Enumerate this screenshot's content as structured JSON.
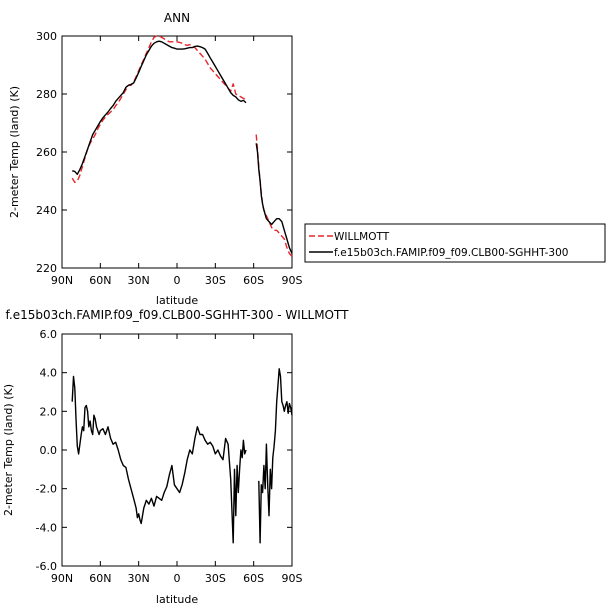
{
  "chart_data": [
    {
      "type": "line",
      "title": "ANN",
      "xlabel": "latitude",
      "ylabel": "2-meter Temp (land) (K)",
      "xlim": [
        90,
        -90
      ],
      "ylim": [
        220,
        300
      ],
      "xticks": [
        90,
        60,
        30,
        0,
        -30,
        -60,
        -90
      ],
      "xtick_labels": [
        "90N",
        "60N",
        "30N",
        "0",
        "30S",
        "60S",
        "90S"
      ],
      "yticks": [
        220,
        240,
        260,
        280,
        300
      ],
      "ytick_labels": [
        "220",
        "240",
        "260",
        "280",
        "300"
      ],
      "legend": {
        "placement": "right"
      },
      "series": [
        {
          "name": "WILLMOTT",
          "color": "#e8262b",
          "dash": "dashed",
          "segments": [
            {
              "x": [
                82,
                80,
                78,
                76,
                74,
                72,
                70,
                68,
                66,
                64,
                62,
                60,
                58,
                56,
                54,
                52,
                50,
                48,
                46,
                44,
                42,
                40,
                38,
                36,
                34,
                32,
                30,
                28,
                26,
                24,
                22,
                20,
                18,
                16,
                14,
                12,
                10,
                8,
                6,
                4,
                2,
                0,
                -2,
                -4,
                -6,
                -8,
                -10,
                -12,
                -14,
                -16,
                -18,
                -20,
                -22,
                -24,
                -26,
                -28,
                -30,
                -32,
                -34,
                -36,
                -38,
                -40,
                -42,
                -44,
                -46,
                -48,
                -50,
                -52,
                -54
              ],
              "y": [
                251,
                249.5,
                250,
                252,
                255,
                258,
                261,
                263,
                264.5,
                266,
                268,
                269.5,
                271,
                272,
                273,
                273.8,
                274.5,
                276,
                277,
                278.5,
                280,
                281.5,
                283,
                283,
                284,
                286,
                288,
                290,
                292,
                294,
                296,
                298,
                299.5,
                300,
                300,
                299.5,
                299,
                298.5,
                298,
                298,
                298,
                298,
                297.8,
                297.5,
                297,
                296.8,
                297,
                296.5,
                296,
                295,
                294,
                293,
                292,
                290.5,
                289,
                288,
                287,
                286,
                285,
                284,
                283,
                282,
                281,
                283.5,
                280,
                279.5,
                279,
                278.5,
                278
              ]
            },
            {
              "x": [
                -62,
                -63,
                -64,
                -65,
                -66,
                -67,
                -68,
                -70,
                -72,
                -74,
                -76,
                -78,
                -80,
                -82,
                -84,
                -86,
                -88,
                -90
              ],
              "y": [
                266,
                261,
                255,
                250,
                246,
                242,
                240,
                238,
                236,
                234,
                233,
                233,
                232,
                231,
                230,
                227,
                225,
                224
              ]
            }
          ]
        },
        {
          "name": "f.e15b03ch.FAMIP.f09_f09.CLB00-SGHHT-300",
          "color": "#000000",
          "dash": "solid",
          "segments": [
            {
              "x": [
                82,
                80,
                78,
                76,
                74,
                72,
                70,
                68,
                66,
                64,
                62,
                60,
                58,
                56,
                54,
                52,
                50,
                48,
                46,
                44,
                42,
                40,
                38,
                36,
                34,
                32,
                30,
                28,
                26,
                24,
                22,
                20,
                18,
                16,
                14,
                12,
                10,
                8,
                6,
                4,
                2,
                0,
                -2,
                -4,
                -6,
                -8,
                -10,
                -12,
                -14,
                -16,
                -18,
                -20,
                -22,
                -24,
                -26,
                -28,
                -30,
                -32,
                -34,
                -36,
                -38,
                -40,
                -42,
                -44,
                -46,
                -48,
                -50,
                -52,
                -54
              ],
              "y": [
                253.5,
                253.3,
                252.3,
                254,
                256,
                258.5,
                261,
                263.5,
                266,
                267.5,
                269,
                270.5,
                271.8,
                272.8,
                273.8,
                275,
                276,
                277.5,
                278.5,
                279.5,
                280.5,
                282.3,
                283,
                283.3,
                283.8,
                285.5,
                287.5,
                289.5,
                291.5,
                293.5,
                295,
                296.5,
                297.5,
                298,
                298.2,
                298,
                297.5,
                297,
                296.5,
                296,
                295.8,
                295.5,
                295.5,
                295.5,
                295.6,
                295.8,
                296,
                296,
                296.4,
                296.5,
                296.3,
                296,
                295.5,
                294,
                292.5,
                291,
                289.5,
                288,
                286.5,
                285,
                283.5,
                282,
                280.5,
                279.5,
                279,
                278,
                277.5,
                277.8,
                277
              ]
            },
            {
              "x": [
                -62,
                -63,
                -64,
                -65,
                -66,
                -67,
                -68,
                -70,
                -72,
                -74,
                -76,
                -78,
                -80,
                -82,
                -84,
                -86,
                -88,
                -90
              ],
              "y": [
                263,
                260,
                254,
                250,
                245,
                242,
                240,
                237,
                236,
                235,
                236,
                237,
                237,
                236,
                233,
                230,
                227,
                225
              ]
            }
          ]
        }
      ]
    },
    {
      "type": "line",
      "title": "f.e15b03ch.FAMIP.f09_f09.CLB00-SGHHT-300  -  WILLMOTT",
      "xlabel": "latitude",
      "ylabel": "2-meter Temp (land) (K)",
      "xlim": [
        90,
        -90
      ],
      "ylim": [
        -6,
        6
      ],
      "xticks": [
        90,
        60,
        30,
        0,
        -30,
        -60,
        -90
      ],
      "xtick_labels": [
        "90N",
        "60N",
        "30N",
        "0",
        "30S",
        "60S",
        "90S"
      ],
      "yticks": [
        -6,
        -4,
        -2,
        0,
        2,
        4,
        6
      ],
      "ytick_labels": [
        "-6.0",
        "-4.0",
        "-2.0",
        "0.0",
        "2.0",
        "4.0",
        "6.0"
      ],
      "series": [
        {
          "color": "#000000",
          "dash": "solid",
          "segments": [
            {
              "x": [
                82,
                81,
                80,
                79,
                78,
                77,
                76,
                75,
                74,
                73,
                72,
                71,
                70,
                69,
                68,
                67,
                66,
                65,
                64,
                63,
                62,
                61,
                60,
                58,
                56,
                54,
                52,
                50,
                48,
                46,
                44,
                42,
                40,
                38,
                36,
                34,
                32,
                31,
                30,
                29,
                28,
                27,
                26,
                25,
                24,
                22,
                20,
                18,
                16,
                14,
                12,
                10,
                8,
                6,
                4,
                2,
                0,
                -2,
                -4,
                -6,
                -8,
                -10,
                -12,
                -14,
                -16,
                -18,
                -20,
                -22,
                -24,
                -26,
                -28,
                -30,
                -32,
                -34,
                -36,
                -38,
                -40,
                -42,
                -44,
                -45,
                -46,
                -47,
                -48,
                -49,
                -50,
                -51,
                -52,
                -53,
                -54
              ],
              "y": [
                2.5,
                3.8,
                3.2,
                1.5,
                0.2,
                -0.2,
                0.3,
                0.8,
                1.2,
                1.0,
                2.2,
                2.3,
                2.0,
                1.2,
                1.5,
                1.0,
                0.8,
                1.8,
                1.6,
                1.2,
                1.0,
                0.8,
                1.0,
                1.1,
                0.8,
                1.2,
                0.6,
                0.3,
                0.4,
                0.0,
                -0.5,
                -0.8,
                -0.9,
                -1.5,
                -2.0,
                -2.5,
                -3.0,
                -3.5,
                -3.3,
                -3.6,
                -3.8,
                -3.4,
                -3.0,
                -2.8,
                -2.6,
                -2.8,
                -2.5,
                -2.9,
                -2.4,
                -2.5,
                -2.6,
                -2.2,
                -1.9,
                -1.3,
                -0.8,
                -1.8,
                -2.0,
                -2.2,
                -1.8,
                -1.2,
                -0.5,
                0.0,
                -0.2,
                0.6,
                1.2,
                0.8,
                0.8,
                0.5,
                0.3,
                0.4,
                0.2,
                -0.2,
                0.0,
                -0.3,
                -0.5,
                0.6,
                0.3,
                -1.5,
                -4.8,
                -1.0,
                -3.4,
                -0.8,
                -2.2,
                -1.0,
                0.0,
                -0.4,
                0.5,
                -0.2,
                0.0
              ]
            },
            {
              "x": [
                -64,
                -65,
                -66,
                -67,
                -68,
                -69,
                -70,
                -71,
                -72,
                -73,
                -74,
                -75,
                -76,
                -77,
                -78,
                -79,
                -80,
                -81,
                -82,
                -83,
                -84,
                -85,
                -86,
                -87,
                -88,
                -89,
                -90
              ],
              "y": [
                -1.6,
                -4.8,
                -1.8,
                -2.2,
                -0.8,
                -2.0,
                0.3,
                -1.8,
                -3.4,
                -1.0,
                -2.0,
                -0.4,
                0.2,
                1.0,
                2.5,
                3.3,
                4.2,
                3.8,
                2.5,
                2.3,
                2.0,
                2.3,
                2.5,
                1.9,
                2.4,
                2.2,
                1.8
              ]
            }
          ]
        }
      ]
    }
  ]
}
